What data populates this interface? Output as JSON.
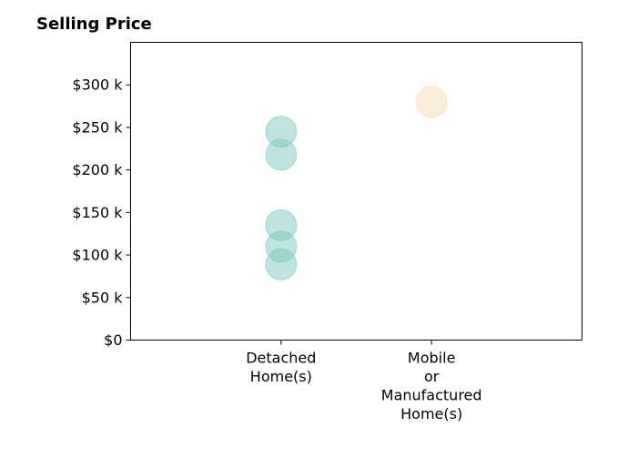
{
  "chart_data": {
    "type": "scatter",
    "title": "Selling Price",
    "xlabel": "",
    "ylabel": "",
    "categories": [
      "Detached Home(s)",
      "Mobile or Manufactured Home(s)"
    ],
    "category_label_lines": [
      [
        "Detached",
        "Home(s)"
      ],
      [
        "Mobile",
        "or",
        "Manufactured",
        "Home(s)"
      ]
    ],
    "series": [
      {
        "category": "Detached Home(s)",
        "color": "#80c7c0",
        "values": [
          245000,
          218000,
          135000,
          110000,
          89000
        ]
      },
      {
        "category": "Mobile or Manufactured Home(s)",
        "color": "#f5deb3",
        "values": [
          280000
        ]
      }
    ],
    "ylim": [
      0,
      350000
    ],
    "yticks": [
      0,
      50000,
      100000,
      150000,
      200000,
      250000,
      300000
    ],
    "ytick_labels": [
      "$0",
      "$50 k",
      "$100 k",
      "$150 k",
      "$200 k",
      "$250 k",
      "$300 k"
    ],
    "grid": false,
    "legend": "none"
  }
}
